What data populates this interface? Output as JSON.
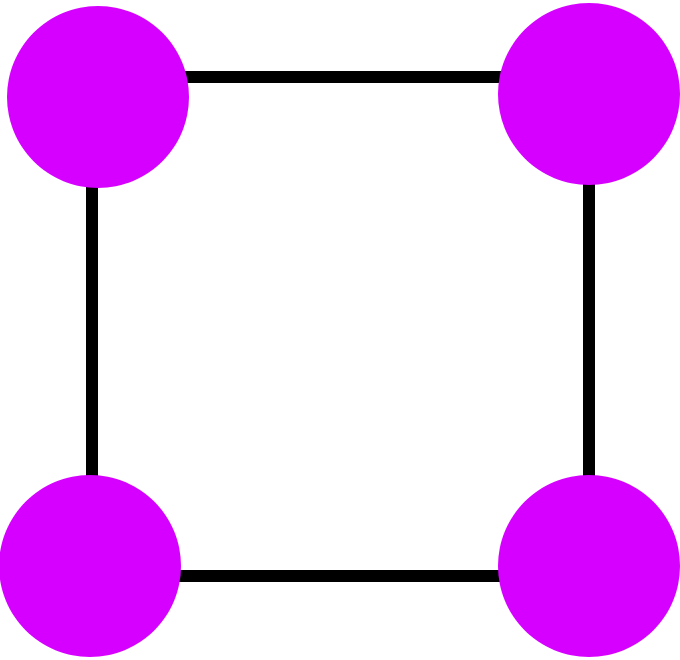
{
  "graph": {
    "node_color": "#d500ff",
    "edge_color": "#000000",
    "nodes": [
      {
        "id": "top-left"
      },
      {
        "id": "top-right"
      },
      {
        "id": "bottom-left"
      },
      {
        "id": "bottom-right"
      }
    ],
    "edges": [
      {
        "from": "top-left",
        "to": "top-right"
      },
      {
        "from": "top-left",
        "to": "bottom-left"
      },
      {
        "from": "top-right",
        "to": "bottom-right"
      },
      {
        "from": "bottom-left",
        "to": "bottom-right"
      }
    ]
  }
}
